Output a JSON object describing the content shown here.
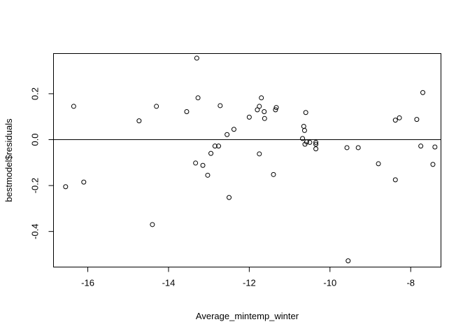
{
  "chart_data": {
    "type": "scatter",
    "title": "",
    "xlabel": "Average_mintemp_winter",
    "ylabel": "bestmodel$residuals",
    "xlim": [
      -16.85,
      -7.25
    ],
    "ylim": [
      -0.555,
      0.375
    ],
    "xticks": [
      -16,
      -14,
      -12,
      -10,
      -8
    ],
    "xtick_labels": [
      "-16",
      "-14",
      "-12",
      "-10",
      "-8"
    ],
    "yticks": [
      -0.4,
      -0.2,
      0.0,
      0.2
    ],
    "ytick_labels": [
      "-0.4",
      "-0.2",
      "0.0",
      "0.2"
    ],
    "hline": 0,
    "grid": false,
    "legend": "none",
    "colors": {
      "points": "#000000",
      "axes": "#000000",
      "background": "#ffffff"
    },
    "points": [
      {
        "x": -16.55,
        "y": -0.205
      },
      {
        "x": -16.35,
        "y": 0.145
      },
      {
        "x": -16.1,
        "y": -0.185
      },
      {
        "x": -14.73,
        "y": 0.082
      },
      {
        "x": -14.4,
        "y": -0.37
      },
      {
        "x": -14.3,
        "y": 0.145
      },
      {
        "x": -13.55,
        "y": 0.122
      },
      {
        "x": -13.33,
        "y": -0.102
      },
      {
        "x": -13.3,
        "y": 0.355
      },
      {
        "x": -13.27,
        "y": 0.182
      },
      {
        "x": -13.15,
        "y": -0.112
      },
      {
        "x": -13.03,
        "y": -0.155
      },
      {
        "x": -12.95,
        "y": -0.06
      },
      {
        "x": -12.85,
        "y": -0.028
      },
      {
        "x": -12.76,
        "y": -0.028
      },
      {
        "x": -12.72,
        "y": 0.148
      },
      {
        "x": -12.55,
        "y": 0.022
      },
      {
        "x": -12.5,
        "y": -0.252
      },
      {
        "x": -12.38,
        "y": 0.045
      },
      {
        "x": -12.0,
        "y": 0.098
      },
      {
        "x": -11.8,
        "y": 0.13
      },
      {
        "x": -11.75,
        "y": 0.145
      },
      {
        "x": -11.75,
        "y": -0.062
      },
      {
        "x": -11.7,
        "y": 0.182
      },
      {
        "x": -11.63,
        "y": 0.122
      },
      {
        "x": -11.62,
        "y": 0.092
      },
      {
        "x": -11.4,
        "y": -0.152
      },
      {
        "x": -11.35,
        "y": 0.13
      },
      {
        "x": -11.33,
        "y": 0.14
      },
      {
        "x": -10.68,
        "y": 0.005
      },
      {
        "x": -10.65,
        "y": 0.058
      },
      {
        "x": -10.63,
        "y": 0.04
      },
      {
        "x": -10.62,
        "y": -0.02
      },
      {
        "x": -10.6,
        "y": 0.118
      },
      {
        "x": -10.58,
        "y": -0.01
      },
      {
        "x": -10.5,
        "y": -0.012
      },
      {
        "x": -10.35,
        "y": -0.012
      },
      {
        "x": -10.35,
        "y": -0.04
      },
      {
        "x": -10.35,
        "y": -0.02
      },
      {
        "x": -9.58,
        "y": -0.035
      },
      {
        "x": -9.55,
        "y": -0.528
      },
      {
        "x": -9.3,
        "y": -0.035
      },
      {
        "x": -8.8,
        "y": -0.105
      },
      {
        "x": -8.38,
        "y": 0.085
      },
      {
        "x": -8.38,
        "y": -0.175
      },
      {
        "x": -8.28,
        "y": 0.095
      },
      {
        "x": -7.85,
        "y": 0.088
      },
      {
        "x": -7.75,
        "y": -0.028
      },
      {
        "x": -7.7,
        "y": 0.205
      },
      {
        "x": -7.45,
        "y": -0.108
      },
      {
        "x": -7.4,
        "y": -0.032
      }
    ]
  }
}
